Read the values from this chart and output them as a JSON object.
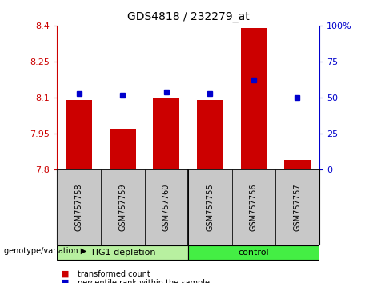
{
  "title": "GDS4818 / 232279_at",
  "samples": [
    "GSM757758",
    "GSM757759",
    "GSM757760",
    "GSM757755",
    "GSM757756",
    "GSM757757"
  ],
  "bar_values": [
    8.09,
    7.97,
    8.1,
    8.09,
    8.39,
    7.84
  ],
  "percentile_values": [
    53,
    52,
    54,
    53,
    62,
    50
  ],
  "y_min": 7.8,
  "y_max": 8.4,
  "y_ticks": [
    7.8,
    7.95,
    8.1,
    8.25,
    8.4
  ],
  "y_tick_labels": [
    "7.8",
    "7.95",
    "8.1",
    "8.25",
    "8.4"
  ],
  "y2_ticks": [
    0,
    25,
    50,
    75,
    100
  ],
  "y2_tick_labels": [
    "0",
    "25",
    "50",
    "75",
    "100%"
  ],
  "bar_color": "#cc0000",
  "dot_color": "#0000cc",
  "bar_width": 0.6,
  "group1_color": "#b8f0a0",
  "group2_color": "#44ee44",
  "sample_box_color": "#c8c8c8",
  "legend_items": [
    {
      "label": "transformed count",
      "color": "#cc0000"
    },
    {
      "label": "percentile rank within the sample",
      "color": "#0000cc"
    }
  ],
  "grid_lines": [
    7.95,
    8.1,
    8.25
  ],
  "background_color": "#ffffff"
}
